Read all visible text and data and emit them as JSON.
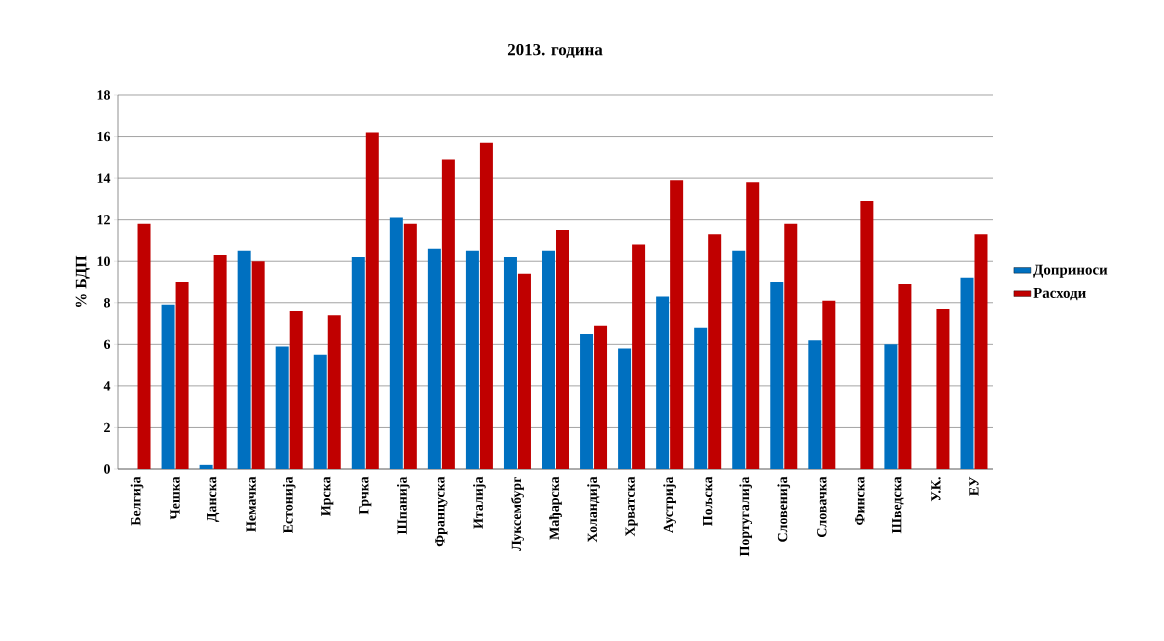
{
  "chart_data": {
    "type": "bar",
    "title": "2013. година",
    "ylabel": "%  БДП",
    "categories": [
      "Белгија",
      "Чешка",
      "Данска",
      "Немачка",
      "Естонија",
      "Ирска",
      "Грчка",
      "Шпанија",
      "Француска",
      "Италија",
      "Луксембург",
      "Мађарска",
      "Холандија",
      "Хрватска",
      "Аустрија",
      "Пољска",
      "Португалија",
      "Словенија",
      "Словачка",
      "Финска",
      "Шведска",
      "У.К.",
      "ЕУ"
    ],
    "series": [
      {
        "name": "Доприноси",
        "color": "#0070c0",
        "values": [
          null,
          7.9,
          0.2,
          10.5,
          5.9,
          5.5,
          10.2,
          12.1,
          10.6,
          10.5,
          10.2,
          10.5,
          6.5,
          5.8,
          8.3,
          6.8,
          10.5,
          9.0,
          6.2,
          null,
          6.0,
          null,
          9.2
        ]
      },
      {
        "name": "Расходи",
        "color": "#c00000",
        "values": [
          11.8,
          9.0,
          10.3,
          10.0,
          7.6,
          7.4,
          16.2,
          11.8,
          14.9,
          15.7,
          9.4,
          11.5,
          6.9,
          10.8,
          13.9,
          11.3,
          13.8,
          11.8,
          8.1,
          12.9,
          8.9,
          7.7,
          11.3
        ]
      }
    ],
    "ylim": [
      0,
      18
    ],
    "yticks": [
      0,
      2,
      4,
      6,
      8,
      10,
      12,
      14,
      16,
      18
    ],
    "grid": "y",
    "legend": "right"
  }
}
